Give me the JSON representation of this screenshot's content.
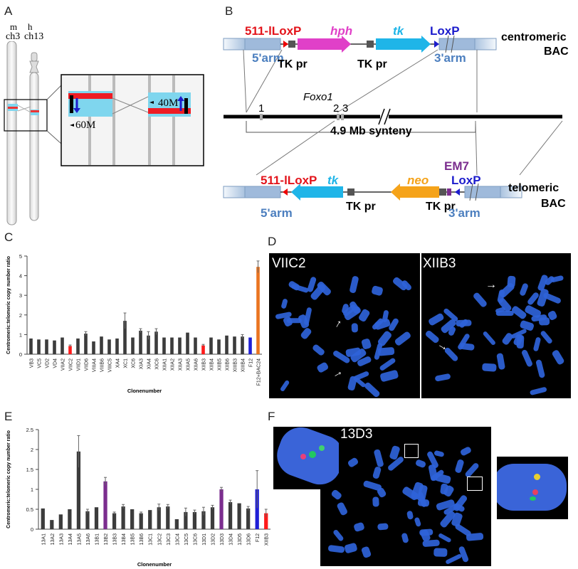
{
  "panels": {
    "A": "A",
    "B": "B",
    "C": "C",
    "D": "D",
    "E": "E",
    "F": "F"
  },
  "panelA": {
    "chr_m_species": "m",
    "chr_m_name": "ch3",
    "chr_h_species": "h",
    "chr_h_name": "ch13",
    "mark_60": "60M",
    "mark_40": "40M"
  },
  "panelB": {
    "top": {
      "lox511": "511-lLoxP",
      "hph": "hph",
      "tk": "tk",
      "loxp": "LoxP",
      "arm5": "5'arm",
      "arm3": "3'arm",
      "tkpr1": "TK pr",
      "tkpr2": "TK pr",
      "bac_l1": "centromeric",
      "bac_l2": "BAC"
    },
    "gene": "Foxo1",
    "exon1": "1",
    "exon2": "2",
    "exon3": "3",
    "synteny": "4.9 Mb synteny",
    "bottom": {
      "lox511": "511-lLoxP",
      "tk": "tk",
      "neo": "neo",
      "em7": "EM7",
      "loxp": "LoxP",
      "arm5": "5'arm",
      "arm3": "3'arm",
      "tkpr1": "TK pr",
      "tkpr2": "TK pr",
      "bac_l1": "telomeric",
      "bac_l2": "BAC"
    }
  },
  "panelD": {
    "left_label": "VIIC2",
    "right_label": "XIIB3"
  },
  "panelF": {
    "label": "13D3"
  },
  "colors": {
    "default": "#3c3c3c",
    "red": "#ff1a1a",
    "blue": "#1f1fd6",
    "orange": "#ea7420",
    "purple": "#7b2d8e"
  },
  "chart_data": [
    {
      "type": "bar",
      "ylabel": "Centromeric:telomeric copy number ratio",
      "xlabel": "Clonenumber",
      "ylim": [
        0,
        5
      ],
      "yticks": [
        0,
        1,
        2,
        3,
        4,
        5
      ],
      "categories": [
        "VB3",
        "VC5",
        "VD2",
        "VD4",
        "VIIA2",
        "VIIC2",
        "VIID1",
        "VIID6",
        "VIIIA4",
        "VIIIB6",
        "VIIIC5",
        "XA4",
        "XC1",
        "XC6",
        "XIA3",
        "XIA4",
        "XIC6",
        "XIIA1",
        "XIIA2",
        "XIIA3",
        "XIIA5",
        "XIIA6",
        "XIIB3",
        "XIIB4",
        "XIIB5",
        "XIIB6",
        "XIIIB3",
        "XIIIB4",
        "F12",
        "F12+BAC24"
      ],
      "values": [
        0.8,
        0.75,
        0.75,
        0.7,
        0.85,
        0.42,
        0.8,
        1.05,
        0.65,
        0.9,
        0.75,
        0.8,
        1.7,
        0.85,
        1.2,
        0.95,
        1.15,
        0.85,
        0.85,
        0.85,
        1.1,
        0.85,
        0.45,
        0.85,
        0.75,
        0.95,
        0.9,
        0.9,
        0.85,
        4.45
      ],
      "errors": [
        0,
        0,
        0,
        0,
        0,
        0.05,
        0,
        0.1,
        0,
        0,
        0,
        0,
        0.4,
        0,
        0.1,
        0.2,
        0.15,
        0,
        0,
        0,
        0,
        0,
        0.05,
        0,
        0,
        0,
        0,
        0.1,
        0,
        0.3
      ],
      "bar_colors": [
        "default",
        "default",
        "default",
        "default",
        "default",
        "red",
        "default",
        "default",
        "default",
        "default",
        "default",
        "default",
        "default",
        "default",
        "default",
        "default",
        "default",
        "default",
        "default",
        "default",
        "default",
        "default",
        "red",
        "default",
        "default",
        "default",
        "default",
        "default",
        "blue",
        "orange"
      ]
    },
    {
      "type": "bar",
      "ylabel": "Centromeric:telomeric copy number ratio",
      "xlabel": "Clonenumber",
      "ylim": [
        0,
        2.5
      ],
      "yticks": [
        0,
        0.5,
        1,
        1.5,
        2,
        2.5
      ],
      "categories": [
        "13A1",
        "13A2",
        "13A3",
        "13A4",
        "13A5",
        "13A6",
        "13B1",
        "13B2",
        "13B3",
        "13B4",
        "13B5",
        "13B6",
        "13C1",
        "13C2",
        "13C3",
        "13C4",
        "13C5",
        "13C6",
        "13D1",
        "13D2",
        "13D3",
        "13D4",
        "13D5",
        "13D6",
        "F12",
        "XIIB3"
      ],
      "values": [
        0.52,
        0.23,
        0.37,
        0.5,
        1.95,
        0.45,
        0.55,
        1.2,
        0.4,
        0.57,
        0.5,
        0.4,
        0.48,
        0.55,
        0.57,
        0.25,
        0.43,
        0.43,
        0.45,
        0.55,
        1.0,
        0.68,
        0.65,
        0.52,
        1.0,
        0.4
      ],
      "errors": [
        0,
        0,
        0,
        0,
        0.4,
        0.05,
        0,
        0.1,
        0.03,
        0.05,
        0,
        0.03,
        0,
        0.08,
        0.05,
        0,
        0.1,
        0.05,
        0.1,
        0.05,
        0.05,
        0.05,
        0,
        0.05,
        0.47,
        0.1
      ],
      "bar_colors": [
        "default",
        "default",
        "default",
        "default",
        "default",
        "default",
        "default",
        "purple",
        "default",
        "default",
        "default",
        "default",
        "default",
        "default",
        "default",
        "default",
        "default",
        "default",
        "default",
        "default",
        "purple",
        "default",
        "default",
        "default",
        "blue",
        "red"
      ]
    }
  ]
}
